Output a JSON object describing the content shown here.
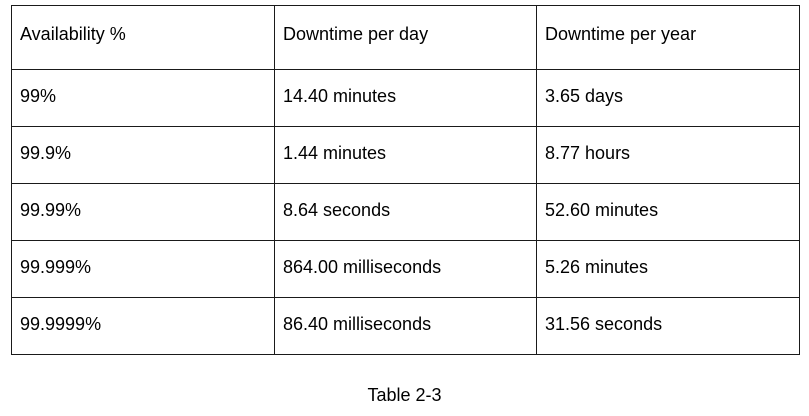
{
  "table": {
    "headers": [
      "Availability %",
      "Downtime per day",
      "Downtime per year"
    ],
    "rows": [
      [
        "99%",
        "14.40 minutes",
        "3.65 days"
      ],
      [
        "99.9%",
        "1.44 minutes",
        "8.77 hours"
      ],
      [
        "99.99%",
        "8.64 seconds",
        "52.60 minutes"
      ],
      [
        "99.999%",
        "864.00 milliseconds",
        "5.26 minutes"
      ],
      [
        "99.9999%",
        "86.40 milliseconds",
        "31.56 seconds"
      ]
    ]
  },
  "caption": "Table 2-3"
}
